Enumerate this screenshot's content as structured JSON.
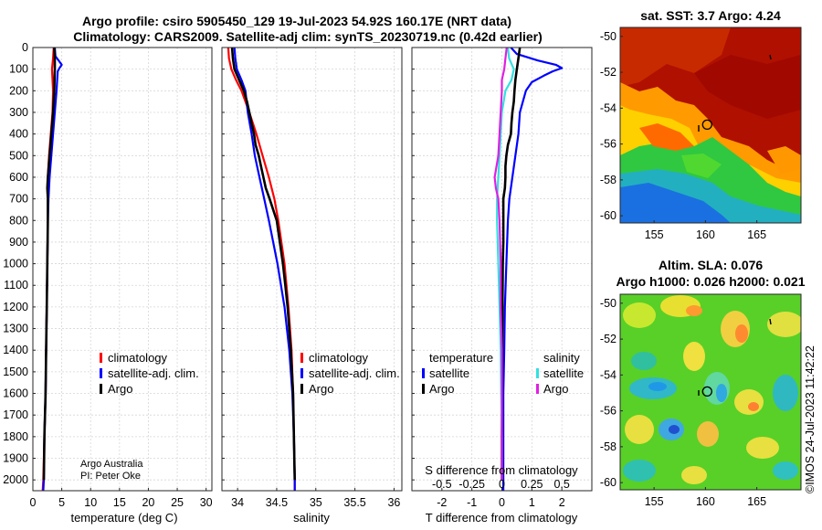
{
  "header": {
    "title_line1": "Argo profile: csiro 5905450_129 19-Jul-2023 54.92S 160.17E (NRT data)",
    "title_line2": "Climatology: CARS2009. Satellite-adj clim: synTS_20230719.nc (0.42d earlier)"
  },
  "colors": {
    "climatology": "#ff0000",
    "satellite_adj": "#0000ff",
    "argo": "#000000",
    "cyan": "#33e0e0",
    "magenta": "#e020e0"
  },
  "credit": {
    "line1": "Argo Australia",
    "line2": "PI: Peter Oke",
    "stamp": "©IMOS 24-Jul-2023 11:42:22"
  },
  "chart_data": [
    {
      "type": "line",
      "id": "temperature",
      "xlabel": "temperature (deg C)",
      "ylabel": "",
      "xlim": [
        0,
        31
      ],
      "ylim": [
        2050,
        0
      ],
      "xticks": [
        0,
        5,
        10,
        15,
        20,
        25,
        30
      ],
      "yticks": [
        0,
        100,
        200,
        300,
        400,
        500,
        600,
        700,
        800,
        900,
        1000,
        1100,
        1200,
        1300,
        1400,
        1500,
        1600,
        1700,
        1800,
        1900,
        2000
      ],
      "grid": true,
      "legend": [
        "climatology",
        "satellite-adj. clim.",
        "Argo"
      ],
      "legend_position": "lower-right",
      "series": [
        {
          "name": "climatology",
          "color": "#ff0000",
          "depth": [
            0,
            50,
            100,
            200,
            300,
            400,
            500,
            600,
            700,
            800,
            1000,
            1200,
            1400,
            1600,
            1800,
            2000,
            2050
          ],
          "values": [
            3.6,
            3.5,
            3.3,
            3.5,
            3.4,
            3.1,
            2.8,
            2.6,
            2.6,
            2.6,
            2.5,
            2.4,
            2.3,
            2.2,
            2.0,
            1.8,
            1.7
          ]
        },
        {
          "name": "satellite-adj. clim.",
          "color": "#0000ff",
          "depth": [
            0,
            40,
            80,
            95,
            110,
            150,
            200,
            300,
            400,
            500,
            600,
            700,
            800,
            1000,
            1200,
            1400,
            1600,
            1800,
            2000,
            2050
          ],
          "values": [
            3.8,
            3.9,
            5.0,
            4.6,
            4.3,
            4.2,
            4.1,
            3.8,
            3.5,
            3.2,
            2.9,
            2.7,
            2.6,
            2.5,
            2.4,
            2.3,
            2.2,
            2.0,
            1.9,
            1.8
          ]
        },
        {
          "name": "Argo",
          "color": "#000000",
          "depth": [
            0,
            50,
            100,
            200,
            300,
            400,
            500,
            600,
            650,
            700,
            800,
            1000,
            1200,
            1400,
            1600,
            1800,
            2000
          ],
          "values": [
            3.7,
            3.8,
            3.8,
            3.7,
            3.5,
            3.2,
            2.9,
            2.6,
            2.5,
            2.6,
            2.6,
            2.5,
            2.4,
            2.3,
            2.2,
            2.0,
            1.9
          ]
        }
      ]
    },
    {
      "type": "line",
      "id": "salinity",
      "xlabel": "salinity",
      "xlim": [
        33.8,
        36.1
      ],
      "ylim": [
        2050,
        0
      ],
      "xticks": [
        34,
        34.5,
        35,
        35.5,
        36
      ],
      "grid": true,
      "legend": [
        "climatology",
        "satellite-adj. clim.",
        "Argo"
      ],
      "legend_position": "lower-right",
      "series": [
        {
          "name": "climatology",
          "color": "#ff0000",
          "depth": [
            0,
            50,
            100,
            150,
            200,
            300,
            400,
            500,
            600,
            700,
            800,
            1000,
            1200,
            1400,
            1600,
            1800,
            2000,
            2050
          ],
          "values": [
            33.88,
            33.89,
            33.92,
            33.98,
            34.05,
            34.15,
            34.24,
            34.32,
            34.4,
            34.47,
            34.52,
            34.6,
            34.65,
            34.69,
            34.71,
            34.72,
            34.73,
            34.73
          ]
        },
        {
          "name": "satellite-adj. clim.",
          "color": "#0000ff",
          "depth": [
            0,
            50,
            100,
            150,
            200,
            300,
            400,
            500,
            600,
            700,
            800,
            1000,
            1200,
            1400,
            1600,
            1800,
            2000,
            2050
          ],
          "values": [
            33.96,
            33.97,
            33.99,
            34.05,
            34.1,
            34.13,
            34.18,
            34.22,
            34.28,
            34.34,
            34.4,
            34.51,
            34.6,
            34.66,
            34.7,
            34.72,
            34.73,
            34.73
          ]
        },
        {
          "name": "Argo",
          "color": "#000000",
          "depth": [
            0,
            50,
            100,
            150,
            200,
            250,
            300,
            350,
            400,
            450,
            500,
            550,
            600,
            650,
            700,
            800,
            900,
            1000,
            1100,
            1200,
            1400,
            1600,
            1800,
            2000
          ],
          "values": [
            33.93,
            33.94,
            33.96,
            34.02,
            34.08,
            34.12,
            34.15,
            34.18,
            34.21,
            34.23,
            34.27,
            34.3,
            34.33,
            34.36,
            34.41,
            34.5,
            34.54,
            34.58,
            34.61,
            34.64,
            34.68,
            34.71,
            34.72,
            34.73
          ]
        }
      ]
    },
    {
      "type": "line",
      "id": "difference",
      "xlabel": "T difference from climatology",
      "top_xlabel": "S difference from climatology",
      "xlim": [
        -3,
        3
      ],
      "top_xlim": [
        -0.75,
        0.75
      ],
      "ylim": [
        2050,
        0
      ],
      "xticks": [
        -2,
        -1,
        0,
        1,
        2
      ],
      "top_xticks": [
        "-0.5",
        "-0.25",
        "0",
        "0.25",
        "0.5"
      ],
      "top_xtick_values": [
        -0.5,
        -0.25,
        0,
        0.25,
        0.5
      ],
      "grid": true,
      "legend_left_title": "temperature",
      "legend_right_title": "salinity",
      "legend_left": [
        "satellite",
        "Argo"
      ],
      "legend_right": [
        "satellite",
        "Argo"
      ],
      "series": [
        {
          "name": "T satellite",
          "color": "#0000ff",
          "depth": [
            0,
            30,
            60,
            80,
            95,
            110,
            130,
            160,
            200,
            300,
            400,
            500,
            600,
            700,
            800,
            1000,
            1200,
            1400,
            1600,
            1800,
            2000,
            2050
          ],
          "values": [
            0.3,
            0.5,
            1.2,
            1.8,
            2.0,
            1.7,
            1.4,
            1.0,
            0.8,
            0.6,
            0.55,
            0.45,
            0.35,
            0.25,
            0.2,
            0.15,
            0.1,
            0.08,
            0.05,
            0.05,
            0.05,
            0.05
          ]
        },
        {
          "name": "T Argo",
          "color": "#000000",
          "depth": [
            0,
            50,
            100,
            150,
            200,
            250,
            300,
            350,
            400,
            450,
            500,
            550,
            600,
            650,
            700,
            800,
            900,
            1000,
            1200,
            1400,
            1600,
            1800,
            2000
          ],
          "values": [
            0.6,
            0.55,
            0.5,
            0.45,
            0.42,
            0.4,
            0.35,
            0.32,
            0.3,
            0.2,
            0.15,
            0.12,
            0.12,
            0.1,
            0.05,
            0.05,
            0.05,
            0.03,
            0.02,
            0.01,
            0.0,
            0.0,
            0.0
          ]
        },
        {
          "name": "S satellite",
          "color": "#33e0e0",
          "depth": [
            0,
            50,
            100,
            150,
            200,
            300,
            400,
            500,
            600,
            700,
            800,
            1000,
            1200,
            1400,
            1600,
            1800,
            2000
          ],
          "values": [
            0.05,
            0.06,
            0.1,
            0.08,
            0.03,
            0.0,
            -0.01,
            -0.02,
            -0.03,
            -0.04,
            -0.04,
            -0.03,
            -0.02,
            -0.01,
            -0.005,
            0.0,
            0.0
          ]
        },
        {
          "name": "S Argo",
          "color": "#e020e0",
          "depth": [
            0,
            50,
            100,
            150,
            200,
            300,
            400,
            500,
            600,
            650,
            700,
            800,
            1000,
            1200,
            1400,
            1600,
            1800,
            2000
          ],
          "values": [
            0.04,
            0.03,
            0.02,
            0.0,
            0.0,
            -0.01,
            -0.02,
            -0.03,
            -0.06,
            -0.05,
            -0.03,
            -0.02,
            -0.01,
            -0.01,
            0.0,
            0.0,
            0.0,
            0.0
          ]
        }
      ]
    },
    {
      "type": "heatmap",
      "id": "sst_map",
      "title": "sat. SST: 3.7 Argo: 4.24",
      "xticks": [
        155,
        160,
        165
      ],
      "yticks": [
        -50,
        -52,
        -54,
        -56,
        -58,
        -60
      ],
      "xlim": [
        151.7,
        169.3
      ],
      "ylim": [
        -60.4,
        -49.5
      ],
      "argo_marker": {
        "lon": 160.17,
        "lat": -54.92
      }
    },
    {
      "type": "heatmap",
      "id": "sla_map",
      "title_line1": "Altim. SLA: 0.076",
      "title_line2": "Argo h1000: 0.026 h2000: 0.021",
      "xticks": [
        155,
        160,
        165
      ],
      "yticks": [
        -50,
        -52,
        -54,
        -56,
        -58,
        -60
      ],
      "xlim": [
        151.7,
        169.3
      ],
      "ylim": [
        -60.4,
        -49.5
      ],
      "argo_marker": {
        "lon": 160.17,
        "lat": -54.92
      }
    }
  ]
}
